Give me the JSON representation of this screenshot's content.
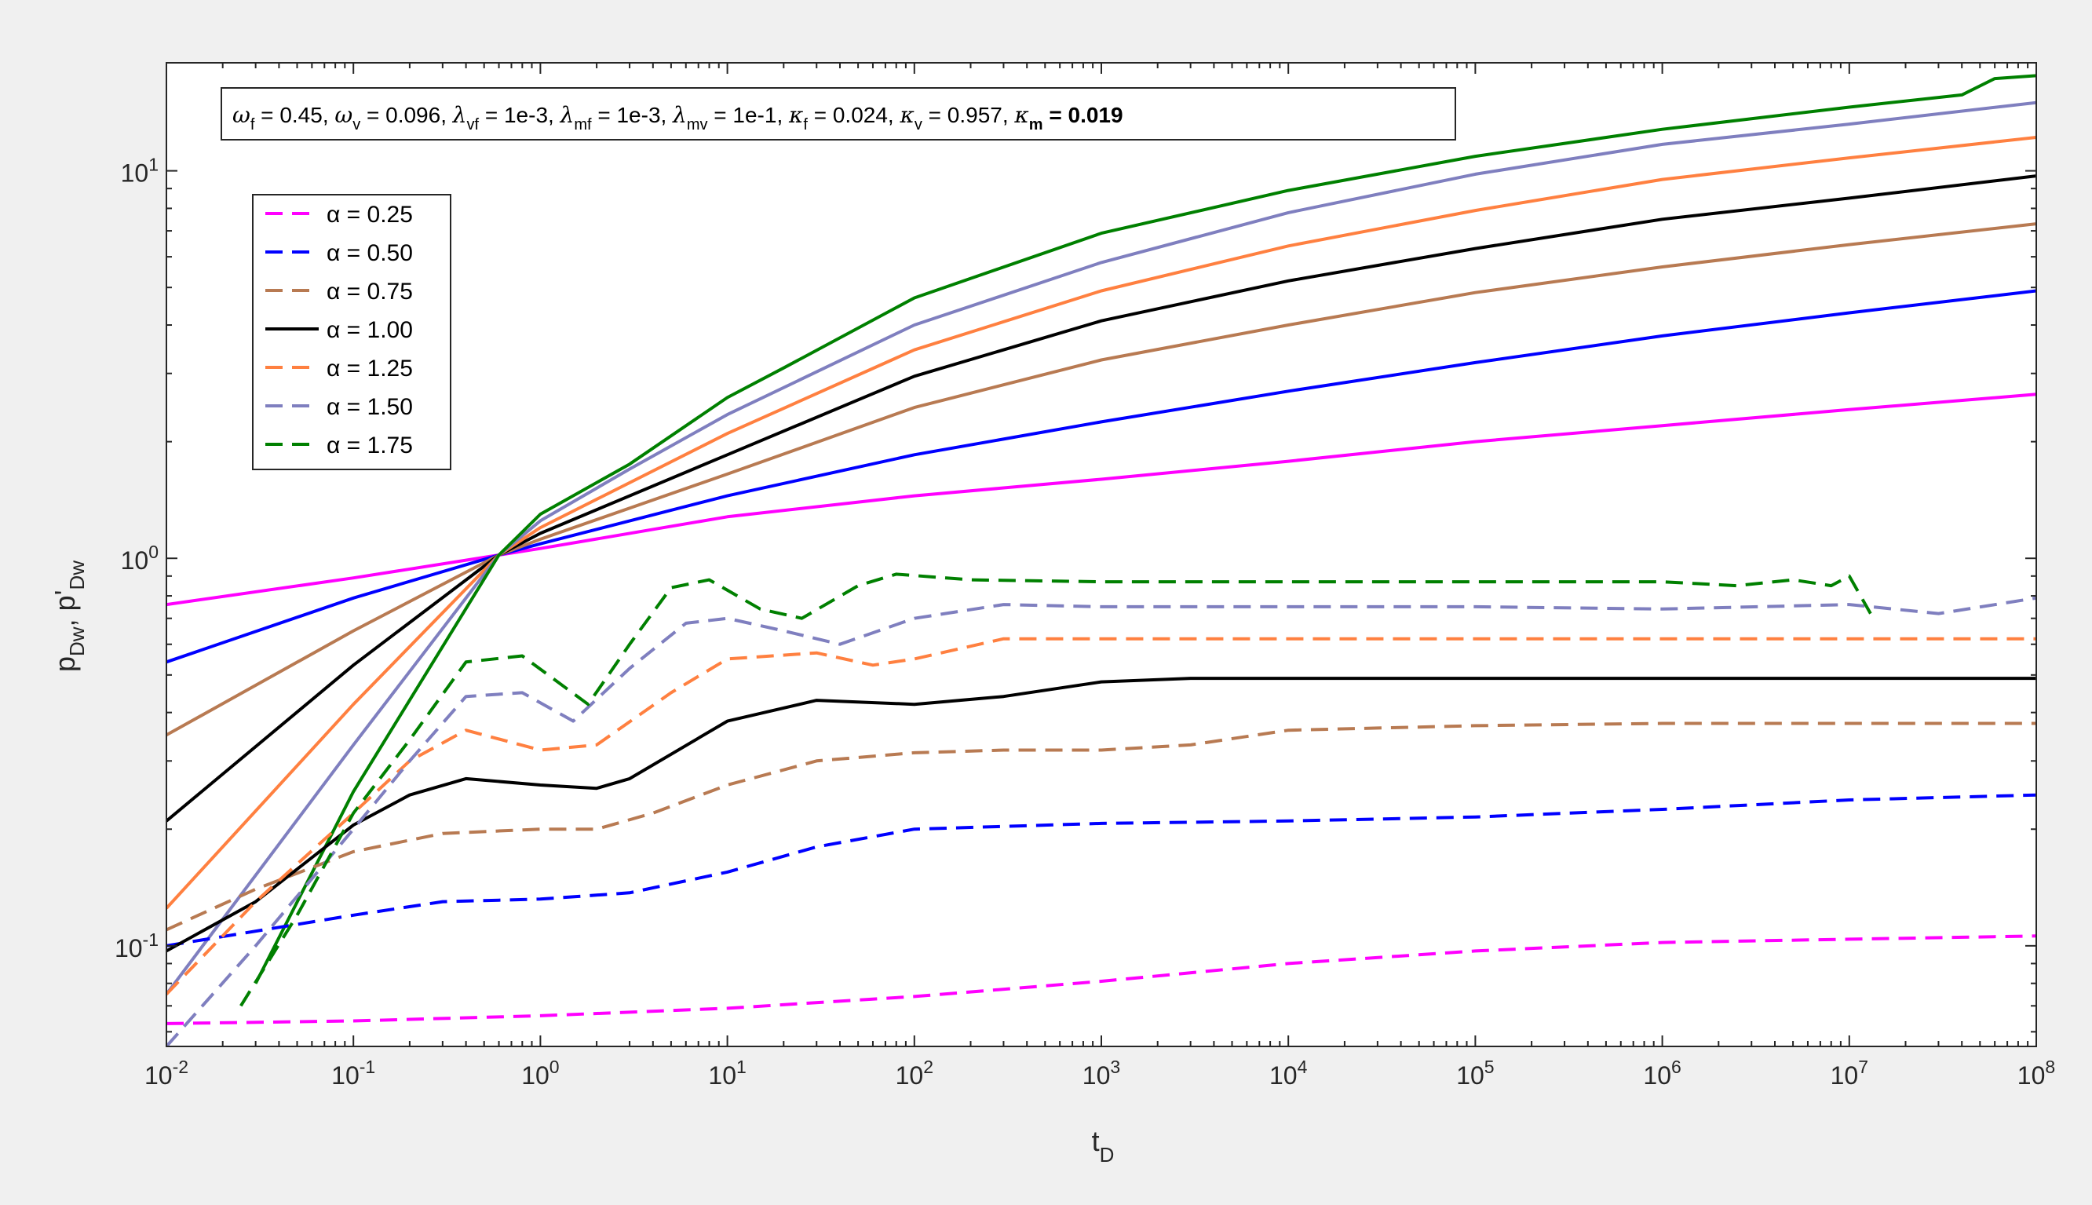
{
  "chart_data": {
    "type": "line",
    "x_scale": "log",
    "y_scale": "log",
    "xlim": [
      0.01,
      100000000
    ],
    "ylim": [
      0.055,
      19
    ],
    "xlabel": "t",
    "xlabel_sub": "D",
    "ylabel_parts": [
      "p",
      "Dw",
      ", p'",
      "Dw"
    ],
    "x_ticks": [
      {
        "value": 0.01,
        "base": "10",
        "exp": "-2"
      },
      {
        "value": 0.1,
        "base": "10",
        "exp": "-1"
      },
      {
        "value": 1,
        "base": "10",
        "exp": "0"
      },
      {
        "value": 10,
        "base": "10",
        "exp": "1"
      },
      {
        "value": 100,
        "base": "10",
        "exp": "2"
      },
      {
        "value": 1000,
        "base": "10",
        "exp": "3"
      },
      {
        "value": 10000,
        "base": "10",
        "exp": "4"
      },
      {
        "value": 100000,
        "base": "10",
        "exp": "5"
      },
      {
        "value": 1000000,
        "base": "10",
        "exp": "6"
      },
      {
        "value": 10000000,
        "base": "10",
        "exp": "7"
      },
      {
        "value": 100000000,
        "base": "10",
        "exp": "8"
      }
    ],
    "y_ticks": [
      {
        "value": 0.1,
        "base": "10",
        "exp": "-1"
      },
      {
        "value": 1,
        "base": "10",
        "exp": "0"
      },
      {
        "value": 10,
        "base": "10",
        "exp": "1"
      }
    ],
    "annotation": [
      {
        "sym": "ω",
        "sub": "f",
        "val": " = 0.45, ",
        "bold": false
      },
      {
        "sym": "ω",
        "sub": "v",
        "val": " = 0.096, ",
        "bold": false
      },
      {
        "sym": "λ",
        "sub": "vf",
        "val": " = 1e-3, ",
        "bold": false
      },
      {
        "sym": "λ",
        "sub": "mf",
        "val": " = 1e-3, ",
        "bold": false
      },
      {
        "sym": "λ",
        "sub": "mv",
        "val": " = 1e-1, ",
        "bold": false
      },
      {
        "sym": "κ",
        "sub": "f",
        "val": " = 0.024, ",
        "bold": false
      },
      {
        "sym": "κ",
        "sub": "v",
        "val": " = 0.957, ",
        "bold": false
      },
      {
        "sym": "κ",
        "sub": "m",
        "val": " = 0.019",
        "bold": true
      }
    ],
    "legend_position": "top-left",
    "legend": [
      {
        "label": "α = 0.25",
        "color": "#ff00ff",
        "dash": "dashed"
      },
      {
        "label": "α = 0.50",
        "color": "#0000ff",
        "dash": "dashed"
      },
      {
        "label": "α = 0.75",
        "color": "#b87a52",
        "dash": "dashed"
      },
      {
        "label": "α = 1.00",
        "color": "#000000",
        "dash": "solid"
      },
      {
        "label": "α = 1.25",
        "color": "#ff8040",
        "dash": "dashed"
      },
      {
        "label": "α = 1.50",
        "color": "#7f7fbf",
        "dash": "dashed"
      },
      {
        "label": "α = 1.75",
        "color": "#008000",
        "dash": "dashed"
      }
    ],
    "series": [
      {
        "color": "#ff00ff",
        "dash": "solid",
        "points": [
          [
            0.01,
            0.76
          ],
          [
            0.1,
            0.89
          ],
          [
            0.6,
            1.02
          ],
          [
            1,
            1.06
          ],
          [
            10,
            1.28
          ],
          [
            100,
            1.45
          ],
          [
            1000,
            1.6
          ],
          [
            10000,
            1.78
          ],
          [
            100000,
            2.0
          ],
          [
            1000000,
            2.2
          ],
          [
            10000000,
            2.42
          ],
          [
            100000000,
            2.65
          ]
        ]
      },
      {
        "color": "#0000ff",
        "dash": "solid",
        "points": [
          [
            0.01,
            0.54
          ],
          [
            0.1,
            0.79
          ],
          [
            0.6,
            1.02
          ],
          [
            1,
            1.09
          ],
          [
            10,
            1.45
          ],
          [
            100,
            1.85
          ],
          [
            1000,
            2.25
          ],
          [
            10000,
            2.7
          ],
          [
            100000,
            3.2
          ],
          [
            1000000,
            3.75
          ],
          [
            10000000,
            4.3
          ],
          [
            100000000,
            4.9
          ]
        ]
      },
      {
        "color": "#b87a52",
        "dash": "solid",
        "points": [
          [
            0.01,
            0.35
          ],
          [
            0.1,
            0.65
          ],
          [
            0.6,
            1.02
          ],
          [
            1,
            1.12
          ],
          [
            10,
            1.65
          ],
          [
            100,
            2.45
          ],
          [
            1000,
            3.25
          ],
          [
            10000,
            4.0
          ],
          [
            100000,
            4.85
          ],
          [
            1000000,
            5.65
          ],
          [
            10000000,
            6.45
          ],
          [
            100000000,
            7.3
          ]
        ]
      },
      {
        "color": "#000000",
        "dash": "solid",
        "points": [
          [
            0.01,
            0.21
          ],
          [
            0.1,
            0.53
          ],
          [
            0.6,
            1.02
          ],
          [
            1,
            1.16
          ],
          [
            10,
            1.85
          ],
          [
            100,
            2.95
          ],
          [
            1000,
            4.1
          ],
          [
            10000,
            5.2
          ],
          [
            100000,
            6.3
          ],
          [
            1000000,
            7.5
          ],
          [
            10000000,
            8.5
          ],
          [
            100000000,
            9.7
          ]
        ]
      },
      {
        "color": "#ff8040",
        "dash": "solid",
        "points": [
          [
            0.01,
            0.125
          ],
          [
            0.1,
            0.42
          ],
          [
            0.6,
            1.02
          ],
          [
            1,
            1.2
          ],
          [
            10,
            2.1
          ],
          [
            100,
            3.45
          ],
          [
            1000,
            4.9
          ],
          [
            10000,
            6.4
          ],
          [
            100000,
            7.9
          ],
          [
            1000000,
            9.5
          ],
          [
            10000000,
            10.8
          ],
          [
            100000000,
            12.2
          ]
        ]
      },
      {
        "color": "#7f7fbf",
        "dash": "solid",
        "points": [
          [
            0.01,
            0.075
          ],
          [
            0.1,
            0.33
          ],
          [
            0.6,
            1.02
          ],
          [
            1,
            1.25
          ],
          [
            3,
            1.7
          ],
          [
            10,
            2.35
          ],
          [
            100,
            4.0
          ],
          [
            1000,
            5.8
          ],
          [
            10000,
            7.8
          ],
          [
            100000,
            9.8
          ],
          [
            1000000,
            11.7
          ],
          [
            10000000,
            13.2
          ],
          [
            100000000,
            15.0
          ]
        ]
      },
      {
        "color": "#008000",
        "dash": "solid",
        "points": [
          [
            0.03,
            0.08
          ],
          [
            0.1,
            0.25
          ],
          [
            0.6,
            1.02
          ],
          [
            1,
            1.3
          ],
          [
            3,
            1.75
          ],
          [
            10,
            2.6
          ],
          [
            20,
            3.1
          ],
          [
            100,
            4.7
          ],
          [
            1000,
            6.9
          ],
          [
            10000,
            8.9
          ],
          [
            100000,
            10.9
          ],
          [
            1000000,
            12.8
          ],
          [
            10000000,
            14.6
          ],
          [
            40000000,
            15.7
          ],
          [
            60000000,
            17.3
          ],
          [
            100000000,
            17.6
          ]
        ]
      },
      {
        "color": "#ff00ff",
        "dash": "dashed",
        "points": [
          [
            0.01,
            0.063
          ],
          [
            0.1,
            0.064
          ],
          [
            1,
            0.066
          ],
          [
            10,
            0.069
          ],
          [
            100,
            0.074
          ],
          [
            1000,
            0.081
          ],
          [
            10000,
            0.09
          ],
          [
            100000,
            0.097
          ],
          [
            1000000,
            0.102
          ],
          [
            10000000,
            0.104
          ],
          [
            100000000,
            0.106
          ]
        ]
      },
      {
        "color": "#0000ff",
        "dash": "dashed",
        "points": [
          [
            0.01,
            0.1
          ],
          [
            0.1,
            0.12
          ],
          [
            0.3,
            0.13
          ],
          [
            1,
            0.132
          ],
          [
            3,
            0.137
          ],
          [
            10,
            0.155
          ],
          [
            30,
            0.18
          ],
          [
            100,
            0.2
          ],
          [
            1000,
            0.207
          ],
          [
            10000,
            0.21
          ],
          [
            100000,
            0.215
          ],
          [
            1000000,
            0.225
          ],
          [
            10000000,
            0.238
          ],
          [
            100000000,
            0.245
          ]
        ]
      },
      {
        "color": "#b87a52",
        "dash": "dashed",
        "points": [
          [
            0.01,
            0.11
          ],
          [
            0.03,
            0.14
          ],
          [
            0.1,
            0.175
          ],
          [
            0.3,
            0.195
          ],
          [
            1,
            0.2
          ],
          [
            2,
            0.2
          ],
          [
            4,
            0.22
          ],
          [
            10,
            0.26
          ],
          [
            30,
            0.3
          ],
          [
            100,
            0.315
          ],
          [
            300,
            0.32
          ],
          [
            1000,
            0.32
          ],
          [
            3000,
            0.33
          ],
          [
            10000,
            0.36
          ],
          [
            100000,
            0.37
          ],
          [
            1000000,
            0.375
          ],
          [
            10000000,
            0.375
          ],
          [
            100000000,
            0.375
          ]
        ]
      },
      {
        "color": "#000000",
        "dash": "solid",
        "points": [
          [
            0.01,
            0.097
          ],
          [
            0.03,
            0.13
          ],
          [
            0.1,
            0.205
          ],
          [
            0.2,
            0.245
          ],
          [
            0.4,
            0.27
          ],
          [
            1,
            0.26
          ],
          [
            2,
            0.255
          ],
          [
            3,
            0.27
          ],
          [
            10,
            0.38
          ],
          [
            30,
            0.43
          ],
          [
            100,
            0.42
          ],
          [
            300,
            0.44
          ],
          [
            1000,
            0.48
          ],
          [
            3000,
            0.49
          ],
          [
            10000,
            0.49
          ],
          [
            1000000,
            0.49
          ],
          [
            100000000,
            0.49
          ]
        ]
      },
      {
        "color": "#ff8040",
        "dash": "dashed",
        "points": [
          [
            0.01,
            0.075
          ],
          [
            0.03,
            0.13
          ],
          [
            0.1,
            0.22
          ],
          [
            0.2,
            0.3
          ],
          [
            0.4,
            0.36
          ],
          [
            1,
            0.32
          ],
          [
            2,
            0.33
          ],
          [
            5,
            0.45
          ],
          [
            10,
            0.55
          ],
          [
            30,
            0.57
          ],
          [
            60,
            0.53
          ],
          [
            100,
            0.55
          ],
          [
            300,
            0.62
          ],
          [
            1000,
            0.62
          ],
          [
            10000,
            0.62
          ],
          [
            100000000,
            0.62
          ]
        ]
      },
      {
        "color": "#7f7fbf",
        "dash": "dashed",
        "points": [
          [
            0.01,
            0.055
          ],
          [
            0.03,
            0.1
          ],
          [
            0.1,
            0.2
          ],
          [
            0.2,
            0.3
          ],
          [
            0.4,
            0.44
          ],
          [
            0.8,
            0.45
          ],
          [
            1.5,
            0.38
          ],
          [
            3,
            0.52
          ],
          [
            6,
            0.68
          ],
          [
            10,
            0.7
          ],
          [
            20,
            0.65
          ],
          [
            40,
            0.6
          ],
          [
            100,
            0.7
          ],
          [
            300,
            0.76
          ],
          [
            1000,
            0.75
          ],
          [
            100000,
            0.75
          ],
          [
            1000000,
            0.74
          ],
          [
            10000000,
            0.76
          ],
          [
            30000000,
            0.72
          ],
          [
            100000000,
            0.79
          ]
        ]
      },
      {
        "color": "#008000",
        "dash": "dashed",
        "points": [
          [
            0.025,
            0.07
          ],
          [
            0.05,
            0.12
          ],
          [
            0.1,
            0.22
          ],
          [
            0.2,
            0.34
          ],
          [
            0.4,
            0.54
          ],
          [
            0.8,
            0.56
          ],
          [
            1.8,
            0.42
          ],
          [
            3,
            0.6
          ],
          [
            5,
            0.84
          ],
          [
            8,
            0.88
          ],
          [
            15,
            0.74
          ],
          [
            25,
            0.7
          ],
          [
            50,
            0.85
          ],
          [
            80,
            0.91
          ],
          [
            200,
            0.88
          ],
          [
            1000,
            0.87
          ],
          [
            100000,
            0.87
          ],
          [
            1000000,
            0.87
          ],
          [
            2500000,
            0.85
          ],
          [
            5000000,
            0.88
          ],
          [
            8000000,
            0.85
          ],
          [
            10000000,
            0.9
          ],
          [
            13000000,
            0.72
          ]
        ]
      }
    ]
  }
}
